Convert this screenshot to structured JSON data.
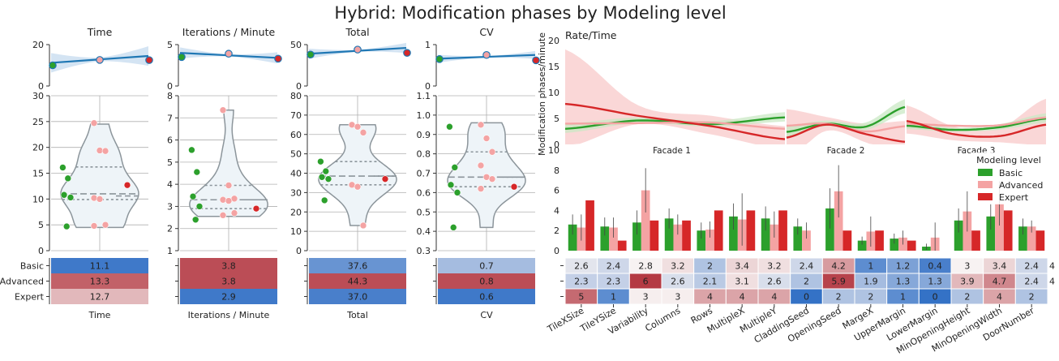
{
  "title": "Hybrid: Modification phases by Modeling level",
  "colors": {
    "basic": "#2ca02c",
    "advanced": "#f4a3a3",
    "expert": "#d62728",
    "line": "#1f77b4",
    "band": "#c6dbef",
    "violin_fill": "#eef4f8",
    "violin_edge": "#8c959b",
    "heat_blue": "#2a6bc4",
    "heat_red": "#b0303a",
    "heat_white": "#f7f2f2"
  },
  "chart_data": [
    {
      "type": "line",
      "panel": "trend",
      "title": "Time",
      "ylim": [
        0,
        20
      ],
      "yticks": [
        "0",
        "20"
      ],
      "start": 11.2,
      "end": 14.5,
      "mid": 12.5,
      "points": [
        {
          "level": "Basic",
          "y": 10.0
        },
        {
          "level": "Advanced",
          "y": 12.6
        },
        {
          "level": "Expert",
          "y": 12.5
        }
      ],
      "band_spread": 0.35
    },
    {
      "type": "line",
      "panel": "trend",
      "title": "Iterations / Minute",
      "ylim": [
        0,
        5
      ],
      "yticks": [
        "0",
        "5"
      ],
      "start": 4.0,
      "end": 3.4,
      "mid": 3.8,
      "points": [
        {
          "level": "Basic",
          "y": 3.5
        },
        {
          "level": "Advanced",
          "y": 3.9
        },
        {
          "level": "Expert",
          "y": 3.3
        }
      ],
      "band_spread": 0.2
    },
    {
      "type": "line",
      "panel": "trend",
      "title": "Total",
      "ylim": [
        0,
        50
      ],
      "yticks": [
        "0",
        "50"
      ],
      "start": 39,
      "end": 46,
      "mid": 43,
      "points": [
        {
          "level": "Basic",
          "y": 38
        },
        {
          "level": "Advanced",
          "y": 44
        },
        {
          "level": "Expert",
          "y": 40
        }
      ],
      "band_spread": 0.18
    },
    {
      "type": "line",
      "panel": "trend",
      "title": "CV",
      "ylim": [
        0,
        1
      ],
      "yticks": [
        "0",
        "1"
      ],
      "start": 0.66,
      "end": 0.75,
      "mid": 0.72,
      "points": [
        {
          "level": "Basic",
          "y": 0.65
        },
        {
          "level": "Advanced",
          "y": 0.75
        },
        {
          "level": "Expert",
          "y": 0.62
        }
      ],
      "band_spread": 0.14
    },
    {
      "type": "scatter",
      "panel": "violin",
      "metric": "Time",
      "ylim": [
        0,
        30
      ],
      "yticks": [
        "0",
        "5",
        "10",
        "15",
        "20",
        "25",
        "30"
      ],
      "violin_range": [
        4.5,
        24.5
      ],
      "quartiles": [
        9.9,
        11.0,
        16.2
      ],
      "expert_median": 10.6,
      "basic": [
        16.1,
        14.0,
        10.8,
        10.3,
        4.7
      ],
      "advanced": [
        24.7,
        19.4,
        19.3,
        10.2,
        10.0,
        5.0,
        4.8
      ],
      "expert": [
        12.7
      ]
    },
    {
      "type": "scatter",
      "panel": "violin",
      "metric": "Iterations / Minute",
      "ylim": [
        1,
        8
      ],
      "yticks": [
        "1",
        "2",
        "3",
        "4",
        "5",
        "6",
        "7",
        "8"
      ],
      "violin_range": [
        2.55,
        7.35
      ],
      "quartiles": [
        2.9,
        3.3,
        3.95
      ],
      "expert_median": 3.3,
      "basic": [
        5.55,
        4.55,
        3.45,
        3.0,
        2.4
      ],
      "advanced": [
        7.35,
        3.95,
        3.35,
        3.3,
        3.25,
        2.7,
        2.6
      ],
      "expert": [
        2.9
      ]
    },
    {
      "type": "scatter",
      "panel": "violin",
      "metric": "Total",
      "ylim": [
        0,
        80
      ],
      "yticks": [
        "0",
        "10",
        "20",
        "30",
        "40",
        "50",
        "60",
        "70",
        "80"
      ],
      "violin_range": [
        13,
        65
      ],
      "quartiles": [
        34,
        38.5,
        46
      ],
      "expert_median": 38.5,
      "basic": [
        46,
        41,
        38,
        37,
        26
      ],
      "advanced": [
        65,
        64,
        61,
        34,
        33,
        13
      ],
      "expert": [
        37
      ]
    },
    {
      "type": "scatter",
      "panel": "violin",
      "metric": "CV",
      "ylim": [
        0.3,
        1.1
      ],
      "yticks": [
        "0.3",
        "0.4",
        "0.5",
        "0.6",
        "0.7",
        "0.8",
        "0.9",
        "1.0",
        "1.1"
      ],
      "violin_range": [
        0.42,
        0.96
      ],
      "quartiles": [
        0.63,
        0.68,
        0.81
      ],
      "expert_median": 0.68,
      "basic": [
        0.94,
        0.73,
        0.64,
        0.6,
        0.42
      ],
      "advanced": [
        0.95,
        0.88,
        0.81,
        0.74,
        0.68,
        0.67,
        0.62
      ],
      "expert": [
        0.63
      ]
    },
    {
      "type": "heatmap",
      "panel": "summary",
      "rows": [
        "Basic",
        "Advanced",
        "Expert"
      ],
      "show_row_labels": true,
      "xlabel": "Time",
      "values": [
        "11.1",
        "13.3",
        "12.7"
      ],
      "tones": [
        -0.9,
        0.75,
        0.3
      ]
    },
    {
      "type": "heatmap",
      "panel": "summary",
      "rows": [
        "Basic",
        "Advanced",
        "Expert"
      ],
      "show_row_labels": false,
      "xlabel": "Iterations / Minute",
      "values": [
        "3.8",
        "3.8",
        "2.9"
      ],
      "tones": [
        0.85,
        0.85,
        -0.9
      ]
    },
    {
      "type": "heatmap",
      "panel": "summary",
      "rows": [
        "Basic",
        "Advanced",
        "Expert"
      ],
      "show_row_labels": false,
      "xlabel": "Total",
      "values": [
        "37.6",
        "44.3",
        "37.0"
      ],
      "tones": [
        -0.7,
        0.85,
        -0.85
      ]
    },
    {
      "type": "heatmap",
      "panel": "summary",
      "rows": [
        "Basic",
        "Advanced",
        "Expert"
      ],
      "show_row_labels": false,
      "xlabel": "CV",
      "values": [
        "0.7",
        "0.8",
        "0.6"
      ],
      "tones": [
        -0.4,
        0.85,
        -0.9
      ]
    },
    {
      "type": "line",
      "panel": "rate",
      "title": "Rate/Time",
      "ylabel": "Modification phases/minute",
      "ylim": [
        0,
        20
      ],
      "yticks": [
        "0",
        "5",
        "10",
        "15",
        "20"
      ],
      "facets": [
        "Facade 1",
        "Facade 2",
        "Facade 3"
      ],
      "series": [
        {
          "name": "Basic",
          "facets": [
            [
              3.0,
              4.6,
              3.9,
              5.2
            ],
            [
              2.4,
              4.0,
              3.4,
              7.2
            ],
            [
              3.6,
              2.8,
              3.3,
              5.0
            ]
          ]
        },
        {
          "name": "Advanced",
          "facets": [
            [
              4.0,
              4.1,
              4.2,
              3.0
            ],
            [
              3.6,
              4.0,
              2.5,
              3.5
            ],
            [
              4.0,
              3.6,
              3.7,
              5.2
            ]
          ]
        },
        {
          "name": "Expert",
          "facets": [
            [
              7.8,
              5.5,
              3.5,
              1.0
            ],
            [
              1.3,
              3.8,
              2.0,
              0.5
            ],
            [
              4.5,
              2.0,
              1.6,
              3.8
            ]
          ]
        }
      ],
      "bands": [
        {
          "series": "Advanced",
          "facets": [
            [
              10.5,
              2.0,
              2.0,
              2.5
            ],
            [
              5.5,
              1.5,
              2.0,
              4.0
            ],
            [
              3.0,
              1.5,
              1.5,
              5.0
            ]
          ]
        },
        {
          "series": "Basic",
          "facets": [
            [
              1.0,
              0.6,
              0.6,
              1.0
            ],
            [
              1.2,
              0.6,
              0.8,
              1.5
            ],
            [
              0.8,
              0.4,
              0.6,
              1.0
            ]
          ]
        }
      ]
    },
    {
      "type": "bar",
      "panel": "parameters",
      "ylim": [
        0,
        10
      ],
      "yticks": [
        "0",
        "2",
        "4",
        "6",
        "8",
        "10"
      ],
      "legend_title": "Modeling level",
      "legend_position": "top-right",
      "categories": [
        "TileXSize",
        "TileYSize",
        "Variability",
        "Columns",
        "Rows",
        "MultipleX",
        "MultipleY",
        "CladdingSeed",
        "OpeningSeed",
        "MargeX",
        "UpperMargin",
        "LowerMargin",
        "MinOpeningHeight",
        "MinOpeningWidth",
        "DoorNumber"
      ],
      "series": [
        {
          "name": "Basic",
          "values": [
            2.6,
            2.4,
            2.8,
            3.2,
            2.0,
            3.4,
            3.2,
            2.4,
            4.2,
            1.0,
            1.2,
            0.4,
            3.0,
            3.4,
            2.4
          ]
        },
        {
          "name": "Advanced",
          "values": [
            2.3,
            2.3,
            6.0,
            2.6,
            2.1,
            3.1,
            2.6,
            2.0,
            5.9,
            1.9,
            1.3,
            1.3,
            3.9,
            4.7,
            2.4
          ]
        },
        {
          "name": "Expert",
          "values": [
            5,
            1,
            3,
            3,
            4,
            4,
            4,
            0,
            2,
            2,
            1,
            0,
            2,
            4,
            2
          ]
        }
      ],
      "errors": [
        [
          1.0,
          0.9,
          1.2,
          1.0,
          0.8,
          1.3,
          1.2,
          0.8,
          2.0,
          0.4,
          0.5,
          0.3,
          1.2,
          1.3,
          0.8
        ],
        [
          1.3,
          1.0,
          2.2,
          1.0,
          0.8,
          2.6,
          1.3,
          0.8,
          2.6,
          1.5,
          0.7,
          1.5,
          2.0,
          2.2,
          0.6
        ]
      ]
    },
    {
      "type": "heatmap",
      "panel": "parameter-table",
      "columns": [
        "TileXSize",
        "TileYSize",
        "Variability",
        "Columns",
        "Rows",
        "MultipleX",
        "MultipleY",
        "CladdingSeed",
        "OpeningSeed",
        "MargeX",
        "UpperMargin",
        "LowerMargin",
        "MinOpeningHeight",
        "MinOpeningWidth",
        "DoorNumber"
      ],
      "rows": [
        {
          "label": "Basic",
          "values": [
            "2.6",
            "2.4",
            "2.8",
            "3.2",
            "2",
            "3.4",
            "3.2",
            "2.4",
            "4.2",
            "1",
            "1.2",
            "0.4",
            "3",
            "3.4",
            "2.4"
          ],
          "tones": [
            -0.1,
            -0.2,
            0.0,
            0.1,
            -0.35,
            0.15,
            0.1,
            -0.2,
            0.45,
            -0.75,
            -0.6,
            -0.85,
            0.0,
            0.15,
            -0.2
          ]
        },
        {
          "label": "Advanced",
          "values": [
            "2.3",
            "2.3",
            "6",
            "2.6",
            "2.1",
            "3.1",
            "2.6",
            "2",
            "5.9",
            "1.9",
            "1.3",
            "1.3",
            "3.9",
            "4.7",
            "2.4"
          ],
          "tones": [
            -0.25,
            -0.25,
            0.95,
            -0.15,
            -0.3,
            0.1,
            -0.15,
            -0.35,
            0.9,
            -0.4,
            -0.55,
            -0.55,
            0.3,
            0.55,
            -0.2
          ]
        },
        {
          "label": "Expert",
          "values": [
            "5",
            "1",
            "3",
            "3",
            "4",
            "4",
            "4",
            "0",
            "2",
            "2",
            "1",
            "0",
            "2",
            "4",
            "2"
          ],
          "tones": [
            0.7,
            -0.75,
            0.02,
            0.02,
            0.4,
            0.4,
            0.4,
            -0.95,
            -0.35,
            -0.35,
            -0.75,
            -0.95,
            -0.35,
            0.4,
            -0.35
          ]
        }
      ],
      "overflow_labels": [
        "4",
        "4"
      ]
    }
  ]
}
